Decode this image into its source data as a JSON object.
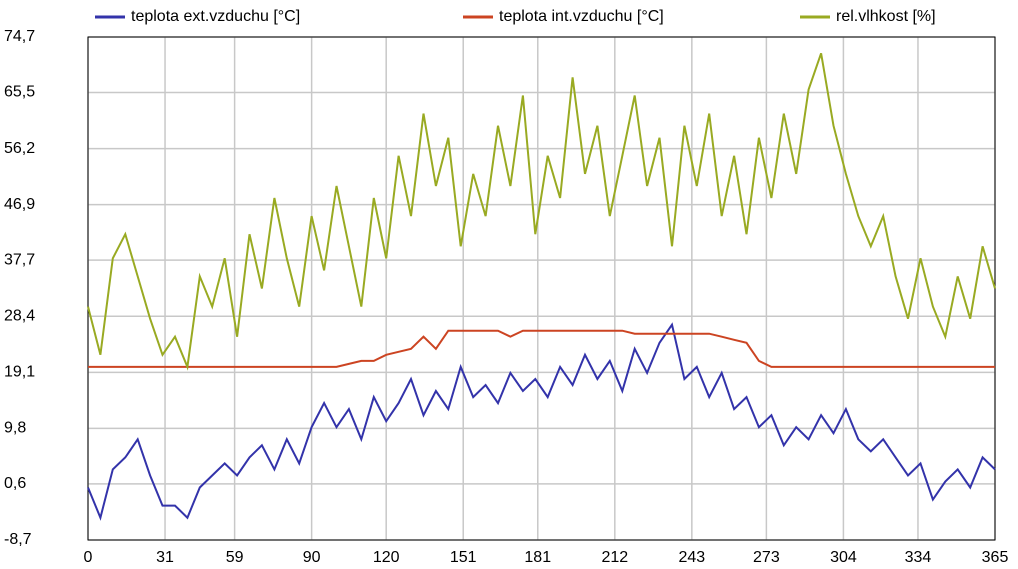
{
  "chart_data": {
    "type": "line",
    "x": [
      0,
      5,
      10,
      15,
      20,
      25,
      30,
      35,
      40,
      45,
      50,
      55,
      60,
      65,
      70,
      75,
      80,
      85,
      90,
      95,
      100,
      105,
      110,
      115,
      120,
      125,
      130,
      135,
      140,
      145,
      150,
      155,
      160,
      165,
      170,
      175,
      180,
      185,
      190,
      195,
      200,
      205,
      210,
      215,
      220,
      225,
      230,
      235,
      240,
      245,
      250,
      255,
      260,
      265,
      270,
      275,
      280,
      285,
      290,
      295,
      300,
      305,
      310,
      315,
      320,
      325,
      330,
      335,
      340,
      345,
      350,
      355,
      360,
      365
    ],
    "series": [
      {
        "name": "teplota ext.vzduchu [°C]",
        "color": "#3333aa",
        "values": [
          0,
          -5,
          3,
          5,
          8,
          2,
          -3,
          -3,
          -5,
          0,
          2,
          4,
          2,
          5,
          7,
          3,
          8,
          4,
          10,
          14,
          10,
          13,
          8,
          15,
          11,
          14,
          18,
          12,
          16,
          13,
          20,
          15,
          17,
          14,
          19,
          16,
          18,
          15,
          20,
          17,
          22,
          18,
          21,
          16,
          23,
          19,
          24,
          27,
          18,
          20,
          15,
          19,
          13,
          15,
          10,
          12,
          7,
          10,
          8,
          12,
          9,
          13,
          8,
          6,
          8,
          5,
          2,
          4,
          -2,
          1,
          3,
          0,
          5,
          3
        ]
      },
      {
        "name": "teplota int.vzduchu [°C]",
        "color": "#cc4422",
        "values": [
          20,
          20,
          20,
          20,
          20,
          20,
          20,
          20,
          20,
          20,
          20,
          20,
          20,
          20,
          20,
          20,
          20,
          20,
          20,
          20,
          20,
          20.5,
          21,
          21,
          22,
          22.5,
          23,
          25,
          23,
          26,
          26,
          26,
          26,
          26,
          25,
          26,
          26,
          26,
          26,
          26,
          26,
          26,
          26,
          26,
          25.5,
          25.5,
          25.5,
          25.5,
          25.5,
          25.5,
          25.5,
          25,
          24.5,
          24,
          21,
          20,
          20,
          20,
          20,
          20,
          20,
          20,
          20,
          20,
          20,
          20,
          20,
          20,
          20,
          20,
          20,
          20,
          20,
          20
        ]
      },
      {
        "name": "rel.vlhkost [%]",
        "color": "#99aa22",
        "values": [
          30,
          22,
          38,
          42,
          35,
          28,
          22,
          25,
          20,
          35,
          30,
          38,
          25,
          42,
          33,
          48,
          38,
          30,
          45,
          36,
          50,
          40,
          30,
          48,
          38,
          55,
          45,
          62,
          50,
          58,
          40,
          52,
          45,
          60,
          50,
          65,
          42,
          55,
          48,
          68,
          52,
          60,
          45,
          55,
          65,
          50,
          58,
          40,
          60,
          50,
          62,
          45,
          55,
          42,
          58,
          48,
          62,
          52,
          66,
          72,
          60,
          52,
          45,
          40,
          45,
          35,
          28,
          38,
          30,
          25,
          35,
          28,
          40,
          33
        ]
      }
    ],
    "xlim": [
      0,
      365
    ],
    "xticks": [
      0,
      31,
      59,
      90,
      120,
      151,
      181,
      212,
      243,
      273,
      304,
      334,
      365
    ],
    "ylim": [
      -8.7,
      74.7
    ],
    "yticks": [
      {
        "value": -8.7,
        "label": "-8,7"
      },
      {
        "value": 0.6,
        "label": "0,6"
      },
      {
        "value": 9.8,
        "label": "9,8"
      },
      {
        "value": 19.1,
        "label": "19,1"
      },
      {
        "value": 28.4,
        "label": "28,4"
      },
      {
        "value": 37.7,
        "label": "37,7"
      },
      {
        "value": 46.9,
        "label": "46,9"
      },
      {
        "value": 56.2,
        "label": "56,2"
      },
      {
        "value": 65.5,
        "label": "65,5"
      },
      {
        "value": 74.7,
        "label": "74,7"
      }
    ],
    "grid": true
  }
}
